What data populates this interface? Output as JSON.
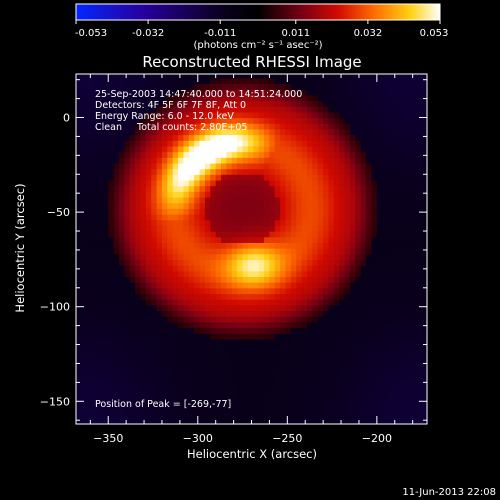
{
  "chart_data": {
    "type": "heatmap",
    "title": "Reconstructed RHESSI Image",
    "xlabel": "Heliocentric X (arcsec)",
    "ylabel": "Heliocentric Y (arcsec)",
    "xlim": [
      -368,
      -172
    ],
    "ylim": [
      -162,
      23
    ],
    "x_ticks": [
      -350,
      -300,
      -250,
      -200
    ],
    "y_ticks": [
      0,
      -50,
      -100,
      -150
    ],
    "colorbar": {
      "range": [
        -0.053,
        0.053
      ],
      "tick_values": [
        -0.053,
        -0.032,
        -0.011,
        0.011,
        0.032,
        0.053
      ],
      "tick_labels": [
        "-0.053",
        "-0.032",
        "-0.011",
        "0.011",
        "0.032",
        "0.053"
      ],
      "unit_label": "(photons cm⁻² s⁻¹ asec⁻²)"
    },
    "annotations": [
      "25-Sep-2003 14:47:40.000 to 14:51:24.000",
      "Detectors: 4F 5F 6F 7F 8F, Att 0",
      "Energy Range: 6.0 - 12.0 keV",
      "Clean     Total counts: 2.80E+05"
    ],
    "peak_label": "Position of Peak = [-269,-77]",
    "peak": {
      "x": -269,
      "y": -77,
      "value": 0.053
    },
    "source": {
      "ring_center": [
        -275,
        -48
      ],
      "ring_radii": [
        38,
        35
      ],
      "bright_arc_start_deg": 170,
      "bright_arc_end_deg": 300,
      "background_level": 0.0,
      "diffuse_level": 0.018
    }
  },
  "footer": {
    "timestamp": "11-Jun-2013 22:08"
  }
}
